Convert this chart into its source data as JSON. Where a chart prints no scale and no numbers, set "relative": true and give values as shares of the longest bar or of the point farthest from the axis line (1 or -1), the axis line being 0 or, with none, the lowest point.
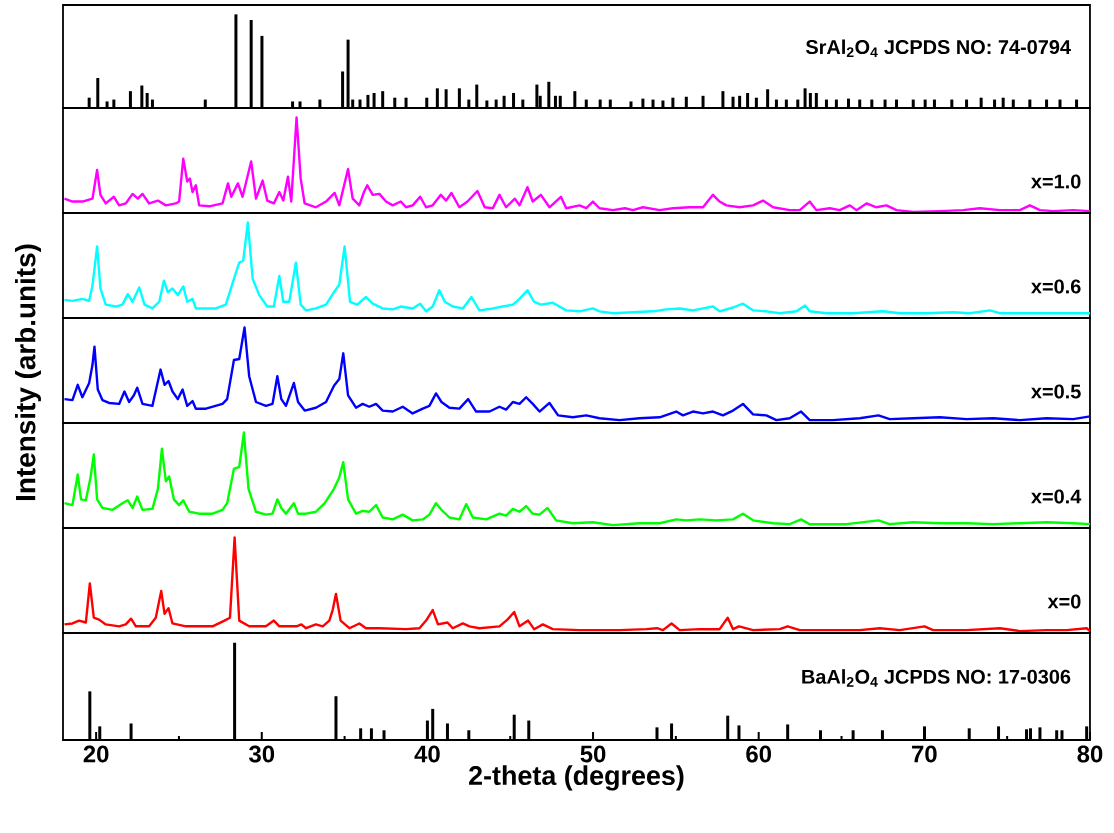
{
  "chart_data": [
    {
      "type": "bar",
      "relative": true,
      "xlim": [
        18,
        80
      ],
      "tick_labels": false,
      "color": "#000000",
      "annotations": [
        "SrAl$_{2}$O$_{4}$ JCPDS NO: 74-0794"
      ],
      "x": [
        19.58,
        20.1,
        20.66,
        21.07,
        22.07,
        22.76,
        23.08,
        23.4,
        26.59,
        28.44,
        29.36,
        30.01,
        31.86,
        32.31,
        33.51,
        34.88,
        35.21,
        35.49,
        35.93,
        36.41,
        36.78,
        37.3,
        38.03,
        38.71,
        39.96,
        40.6,
        41.13,
        41.93,
        42.5,
        42.98,
        43.59,
        44.15,
        44.63,
        45.2,
        45.76,
        46.61,
        46.81,
        47.33,
        47.73,
        48.02,
        48.9,
        49.59,
        50.43,
        51.04,
        52.29,
        53.01,
        53.62,
        54.22,
        54.82,
        55.63,
        56.64,
        57.84,
        58.45,
        58.85,
        59.33,
        59.86,
        60.54,
        61.07,
        61.67,
        62.36,
        62.8,
        63.12,
        63.48,
        64.09,
        64.69,
        65.42,
        66.1,
        66.83,
        67.63,
        68.32,
        69.33,
        70.05,
        70.61,
        71.66,
        72.55,
        73.43,
        74.24,
        74.76,
        75.37,
        76.37,
        77.38,
        78.19,
        79.19
      ],
      "values": [
        0.11,
        0.32,
        0.07,
        0.09,
        0.18,
        0.24,
        0.16,
        0.09,
        0.09,
        1.0,
        0.94,
        0.77,
        0.07,
        0.07,
        0.09,
        0.39,
        0.73,
        0.09,
        0.09,
        0.14,
        0.16,
        0.18,
        0.11,
        0.11,
        0.11,
        0.21,
        0.2,
        0.21,
        0.09,
        0.25,
        0.08,
        0.09,
        0.13,
        0.16,
        0.09,
        0.25,
        0.13,
        0.28,
        0.13,
        0.13,
        0.18,
        0.09,
        0.09,
        0.09,
        0.07,
        0.1,
        0.09,
        0.08,
        0.11,
        0.12,
        0.13,
        0.18,
        0.12,
        0.13,
        0.16,
        0.11,
        0.2,
        0.09,
        0.09,
        0.09,
        0.21,
        0.16,
        0.16,
        0.09,
        0.09,
        0.1,
        0.09,
        0.09,
        0.09,
        0.09,
        0.09,
        0.09,
        0.09,
        0.09,
        0.09,
        0.11,
        0.09,
        0.11,
        0.09,
        0.09,
        0.09,
        0.09,
        0.09
      ]
    },
    {
      "type": "line",
      "relative": true,
      "xlim": [
        18,
        80
      ],
      "tick_labels": false,
      "series": [
        {
          "name": "x=1.0",
          "color": "#ff00ff",
          "x": [
            18.09,
            18.57,
            19.17,
            19.78,
            20.06,
            20.26,
            20.58,
            21.07,
            21.39,
            21.79,
            22.2,
            22.52,
            22.8,
            23.2,
            23.73,
            24.21,
            24.81,
            25.01,
            25.26,
            25.5,
            25.66,
            25.82,
            26.02,
            26.22,
            26.83,
            27.63,
            27.96,
            28.16,
            28.56,
            28.84,
            29.36,
            29.65,
            30.05,
            30.33,
            30.73,
            31.06,
            31.3,
            31.58,
            31.78,
            32.1,
            32.35,
            32.59,
            33.27,
            33.88,
            34.4,
            34.68,
            35.21,
            35.49,
            35.89,
            36.17,
            36.37,
            36.7,
            37.1,
            37.5,
            37.91,
            38.39,
            38.71,
            39.11,
            39.56,
            39.92,
            40.32,
            40.81,
            41.13,
            41.45,
            41.93,
            42.42,
            43.02,
            43.46,
            43.95,
            44.35,
            44.75,
            45.28,
            45.56,
            46.04,
            46.36,
            46.85,
            47.37,
            48.06,
            48.38,
            49.18,
            49.59,
            49.99,
            50.39,
            51.2,
            51.92,
            52.41,
            53.01,
            54.02,
            54.82,
            55.83,
            56.64,
            57.24,
            57.64,
            58.05,
            58.85,
            59.66,
            60.26,
            60.87,
            61.87,
            62.48,
            63.08,
            63.48,
            64.29,
            64.89,
            65.5,
            65.9,
            66.51,
            67.11,
            67.71,
            68.32,
            69.33,
            70.94,
            72.35,
            73.35,
            74.56,
            75.77,
            76.37,
            76.98,
            77.78,
            78.99,
            80.0
          ],
          "values": [
            0.15,
            0.12,
            0.12,
            0.15,
            0.45,
            0.19,
            0.1,
            0.17,
            0.08,
            0.1,
            0.2,
            0.15,
            0.2,
            0.1,
            0.13,
            0.08,
            0.1,
            0.12,
            0.57,
            0.33,
            0.36,
            0.22,
            0.29,
            0.08,
            0.07,
            0.1,
            0.31,
            0.17,
            0.31,
            0.17,
            0.54,
            0.15,
            0.34,
            0.13,
            0.1,
            0.22,
            0.13,
            0.38,
            0.12,
            1.0,
            0.36,
            0.1,
            0.06,
            0.12,
            0.21,
            0.08,
            0.46,
            0.15,
            0.08,
            0.22,
            0.29,
            0.19,
            0.2,
            0.12,
            0.08,
            0.12,
            0.06,
            0.08,
            0.17,
            0.06,
            0.08,
            0.19,
            0.13,
            0.21,
            0.06,
            0.12,
            0.23,
            0.06,
            0.05,
            0.19,
            0.06,
            0.15,
            0.08,
            0.27,
            0.12,
            0.19,
            0.06,
            0.17,
            0.05,
            0.08,
            0.05,
            0.12,
            0.05,
            0.03,
            0.05,
            0.03,
            0.06,
            0.03,
            0.05,
            0.06,
            0.06,
            0.19,
            0.12,
            0.08,
            0.06,
            0.08,
            0.13,
            0.06,
            0.03,
            0.03,
            0.12,
            0.03,
            0.05,
            0.03,
            0.08,
            0.03,
            0.1,
            0.06,
            0.08,
            0.03,
            0.01,
            0.02,
            0.03,
            0.05,
            0.03,
            0.03,
            0.08,
            0.03,
            0.02,
            0.03,
            0.02
          ]
        }
      ]
    },
    {
      "type": "line",
      "relative": true,
      "xlim": [
        18,
        80
      ],
      "tick_labels": false,
      "series": [
        {
          "name": "x=0.6",
          "color": "#00ffff",
          "x": [
            18.09,
            18.57,
            19.17,
            19.58,
            19.78,
            20.06,
            20.26,
            20.58,
            21.19,
            21.59,
            21.91,
            22.2,
            22.6,
            22.92,
            23.4,
            23.81,
            24.09,
            24.33,
            24.61,
            24.93,
            25.26,
            25.5,
            25.82,
            26.02,
            26.42,
            27.23,
            27.83,
            28.32,
            28.64,
            28.88,
            29.16,
            29.45,
            29.85,
            30.33,
            30.73,
            31.06,
            31.3,
            31.66,
            32.06,
            32.35,
            32.67,
            33.27,
            33.88,
            34.36,
            34.68,
            35.0,
            35.33,
            35.77,
            36.29,
            36.7,
            37.3,
            37.91,
            38.39,
            39.11,
            39.56,
            39.92,
            40.32,
            40.72,
            41.05,
            41.53,
            42.14,
            42.66,
            43.14,
            43.95,
            44.55,
            45.16,
            45.56,
            46.04,
            46.44,
            46.85,
            47.57,
            48.38,
            49.18,
            49.99,
            50.39,
            51.2,
            52.41,
            53.62,
            54.42,
            55.23,
            56.03,
            56.64,
            57.24,
            57.64,
            58.45,
            59.05,
            59.66,
            60.46,
            61.27,
            62.28,
            62.8,
            63.08,
            64.09,
            65.7,
            67.51,
            68.52,
            70.13,
            71.74,
            72.75,
            73.96,
            74.56,
            76.17,
            78.19,
            80.0
          ],
          "values": [
            0.19,
            0.18,
            0.2,
            0.18,
            0.34,
            0.75,
            0.31,
            0.14,
            0.12,
            0.14,
            0.25,
            0.17,
            0.32,
            0.14,
            0.1,
            0.17,
            0.39,
            0.27,
            0.31,
            0.24,
            0.33,
            0.17,
            0.2,
            0.1,
            0.1,
            0.1,
            0.14,
            0.41,
            0.58,
            0.6,
            1.0,
            0.41,
            0.24,
            0.12,
            0.12,
            0.44,
            0.17,
            0.17,
            0.58,
            0.14,
            0.08,
            0.1,
            0.14,
            0.27,
            0.35,
            0.75,
            0.17,
            0.14,
            0.22,
            0.15,
            0.1,
            0.09,
            0.12,
            0.1,
            0.15,
            0.07,
            0.12,
            0.29,
            0.17,
            0.12,
            0.1,
            0.22,
            0.08,
            0.1,
            0.12,
            0.14,
            0.2,
            0.29,
            0.17,
            0.14,
            0.16,
            0.08,
            0.07,
            0.1,
            0.07,
            0.05,
            0.06,
            0.07,
            0.09,
            0.1,
            0.08,
            0.1,
            0.12,
            0.07,
            0.11,
            0.15,
            0.08,
            0.07,
            0.05,
            0.07,
            0.13,
            0.07,
            0.05,
            0.05,
            0.07,
            0.05,
            0.05,
            0.06,
            0.05,
            0.08,
            0.05,
            0.05,
            0.05,
            0.05
          ]
        }
      ]
    },
    {
      "type": "line",
      "relative": true,
      "xlim": [
        18,
        80
      ],
      "tick_labels": false,
      "ylabel": "Intensity (arb.units)",
      "series": [
        {
          "name": "x=0.5",
          "color": "#0000ff",
          "x": [
            18.09,
            18.57,
            18.89,
            19.17,
            19.58,
            19.78,
            19.9,
            20.1,
            20.38,
            20.78,
            21.39,
            21.71,
            21.99,
            22.28,
            22.48,
            22.8,
            23.4,
            23.89,
            24.13,
            24.37,
            24.61,
            24.93,
            25.22,
            25.5,
            25.82,
            26.02,
            26.63,
            27.63,
            27.91,
            28.32,
            28.64,
            28.96,
            29.24,
            29.65,
            30.25,
            30.65,
            30.94,
            31.18,
            31.46,
            31.94,
            32.19,
            32.59,
            33.27,
            33.88,
            34.36,
            34.68,
            34.92,
            35.21,
            35.69,
            36.09,
            36.49,
            36.9,
            37.3,
            37.91,
            38.51,
            39.11,
            39.72,
            40.12,
            40.52,
            40.85,
            41.33,
            41.93,
            42.46,
            42.94,
            43.75,
            44.35,
            44.75,
            45.16,
            45.56,
            45.96,
            46.36,
            46.77,
            47.37,
            47.89,
            48.78,
            49.59,
            50.39,
            51.6,
            52.81,
            54.02,
            55.02,
            55.43,
            56.03,
            56.64,
            57.24,
            57.84,
            58.45,
            59.05,
            59.66,
            60.46,
            61.07,
            61.87,
            62.56,
            63.08,
            64.49,
            66.1,
            67.23,
            67.91,
            69.33,
            70.94,
            72.55,
            74.16,
            75.77,
            77.38,
            78.99,
            80.0
          ],
          "values": [
            0.25,
            0.24,
            0.4,
            0.27,
            0.42,
            0.61,
            0.8,
            0.35,
            0.24,
            0.21,
            0.2,
            0.33,
            0.22,
            0.29,
            0.37,
            0.2,
            0.18,
            0.56,
            0.4,
            0.44,
            0.33,
            0.25,
            0.35,
            0.18,
            0.23,
            0.15,
            0.15,
            0.2,
            0.25,
            0.66,
            0.67,
            1.0,
            0.49,
            0.22,
            0.18,
            0.2,
            0.49,
            0.25,
            0.18,
            0.42,
            0.22,
            0.13,
            0.16,
            0.22,
            0.39,
            0.46,
            0.73,
            0.29,
            0.16,
            0.2,
            0.17,
            0.2,
            0.13,
            0.12,
            0.17,
            0.1,
            0.15,
            0.18,
            0.31,
            0.22,
            0.16,
            0.15,
            0.25,
            0.12,
            0.12,
            0.17,
            0.14,
            0.22,
            0.2,
            0.27,
            0.2,
            0.12,
            0.21,
            0.08,
            0.06,
            0.08,
            0.05,
            0.03,
            0.05,
            0.06,
            0.12,
            0.08,
            0.12,
            0.1,
            0.12,
            0.08,
            0.13,
            0.2,
            0.09,
            0.08,
            0.03,
            0.05,
            0.12,
            0.03,
            0.03,
            0.05,
            0.08,
            0.04,
            0.05,
            0.06,
            0.04,
            0.05,
            0.03,
            0.05,
            0.04,
            0.07
          ]
        }
      ]
    },
    {
      "type": "line",
      "relative": true,
      "xlim": [
        18,
        80
      ],
      "tick_labels": false,
      "series": [
        {
          "name": "x=0.4",
          "color": "#00ff00",
          "x": [
            18.09,
            18.57,
            18.89,
            19.09,
            19.38,
            19.66,
            19.86,
            20.06,
            20.38,
            20.99,
            21.59,
            21.91,
            22.2,
            22.48,
            22.8,
            23.4,
            23.73,
            23.97,
            24.21,
            24.41,
            24.69,
            25.01,
            25.26,
            25.62,
            26.22,
            27.03,
            27.63,
            27.91,
            28.32,
            28.64,
            28.92,
            29.2,
            29.65,
            30.25,
            30.65,
            30.94,
            31.18,
            31.46,
            31.94,
            32.19,
            32.67,
            33.27,
            33.8,
            34.36,
            34.68,
            34.92,
            35.21,
            35.69,
            36.09,
            36.49,
            36.9,
            37.3,
            37.91,
            38.51,
            39.11,
            39.72,
            40.12,
            40.52,
            40.85,
            41.33,
            41.93,
            42.34,
            42.74,
            43.55,
            44.35,
            44.75,
            45.16,
            45.56,
            45.96,
            46.36,
            46.77,
            47.25,
            47.77,
            48.78,
            49.99,
            51.2,
            52.81,
            54.02,
            55.02,
            55.63,
            56.43,
            57.44,
            58.45,
            59.05,
            59.66,
            60.87,
            61.87,
            62.56,
            63.08,
            65.3,
            67.23,
            67.91,
            69.33,
            70.94,
            72.55,
            74.16,
            75.77,
            77.38,
            78.99,
            80.0
          ],
          "values": [
            0.26,
            0.24,
            0.56,
            0.3,
            0.29,
            0.53,
            0.77,
            0.3,
            0.21,
            0.19,
            0.26,
            0.29,
            0.21,
            0.33,
            0.19,
            0.2,
            0.41,
            0.83,
            0.49,
            0.54,
            0.3,
            0.24,
            0.29,
            0.17,
            0.15,
            0.15,
            0.19,
            0.26,
            0.62,
            0.64,
            1.0,
            0.41,
            0.17,
            0.14,
            0.15,
            0.3,
            0.21,
            0.15,
            0.26,
            0.15,
            0.15,
            0.17,
            0.26,
            0.41,
            0.53,
            0.69,
            0.3,
            0.15,
            0.18,
            0.17,
            0.24,
            0.11,
            0.09,
            0.14,
            0.08,
            0.09,
            0.14,
            0.26,
            0.19,
            0.11,
            0.09,
            0.25,
            0.11,
            0.09,
            0.15,
            0.13,
            0.2,
            0.17,
            0.23,
            0.15,
            0.14,
            0.21,
            0.08,
            0.05,
            0.06,
            0.03,
            0.05,
            0.05,
            0.09,
            0.08,
            0.09,
            0.08,
            0.09,
            0.15,
            0.08,
            0.05,
            0.04,
            0.09,
            0.04,
            0.04,
            0.08,
            0.04,
            0.06,
            0.05,
            0.05,
            0.04,
            0.05,
            0.06,
            0.05,
            0.04
          ]
        }
      ]
    },
    {
      "type": "line",
      "relative": true,
      "xlim": [
        18,
        80
      ],
      "tick_labels": false,
      "series": [
        {
          "name": "x=0",
          "color": "#ff0000",
          "x": [
            18.09,
            18.57,
            18.97,
            19.38,
            19.62,
            19.86,
            20.18,
            20.58,
            21.39,
            21.79,
            22.11,
            22.4,
            23.2,
            23.6,
            23.93,
            24.13,
            24.37,
            24.61,
            25.42,
            27.03,
            27.75,
            28.08,
            28.36,
            28.64,
            29.24,
            30.25,
            30.73,
            31.06,
            32.1,
            32.39,
            32.67,
            33.27,
            33.68,
            34.08,
            34.28,
            34.48,
            34.76,
            35.29,
            35.89,
            36.29,
            37.1,
            38.71,
            39.52,
            39.92,
            40.32,
            40.64,
            41.21,
            41.53,
            42.14,
            42.54,
            43.14,
            44.35,
            44.83,
            45.24,
            45.56,
            46.08,
            46.44,
            46.97,
            47.57,
            49.18,
            51.6,
            53.21,
            53.86,
            54.22,
            54.74,
            55.23,
            56.43,
            57.64,
            58.13,
            58.45,
            58.81,
            59.66,
            61.27,
            61.75,
            62.48,
            64.49,
            66.1,
            67.31,
            68.52,
            70.01,
            70.53,
            72.55,
            74.56,
            75.77,
            77.38,
            78.59,
            79.8,
            80.0
          ],
          "values": [
            0.09,
            0.1,
            0.13,
            0.11,
            0.52,
            0.16,
            0.14,
            0.09,
            0.07,
            0.09,
            0.15,
            0.07,
            0.07,
            0.16,
            0.44,
            0.2,
            0.26,
            0.1,
            0.07,
            0.07,
            0.13,
            0.16,
            1.0,
            0.13,
            0.07,
            0.07,
            0.13,
            0.07,
            0.07,
            0.09,
            0.05,
            0.09,
            0.07,
            0.13,
            0.24,
            0.41,
            0.13,
            0.05,
            0.1,
            0.05,
            0.05,
            0.04,
            0.05,
            0.13,
            0.24,
            0.09,
            0.11,
            0.05,
            0.1,
            0.07,
            0.05,
            0.07,
            0.14,
            0.22,
            0.07,
            0.13,
            0.04,
            0.09,
            0.04,
            0.03,
            0.03,
            0.04,
            0.05,
            0.03,
            0.1,
            0.03,
            0.04,
            0.04,
            0.16,
            0.04,
            0.07,
            0.03,
            0.04,
            0.07,
            0.03,
            0.03,
            0.03,
            0.05,
            0.03,
            0.07,
            0.03,
            0.03,
            0.05,
            0.02,
            0.03,
            0.03,
            0.05,
            0.02
          ]
        }
      ]
    },
    {
      "type": "bar",
      "relative": true,
      "xlim": [
        18,
        80
      ],
      "tick_labels": "x",
      "color": "#000000",
      "xlabel": "2-theta (degrees)",
      "annotations": [
        "BaAl$_{2}$O$_{4}$ JCPDS NO: 17-0306"
      ],
      "xticks": [
        20,
        {
          "value": 25,
          "label": null
        },
        30,
        {
          "value": 35,
          "label": null
        },
        40,
        {
          "value": 45,
          "label": null
        },
        50,
        {
          "value": 55,
          "label": null
        },
        60,
        {
          "value": 65,
          "label": null
        },
        70,
        {
          "value": 75,
          "label": null
        },
        80
      ],
      "x": [
        19.62,
        20.22,
        22.11,
        28.36,
        34.48,
        35.97,
        36.62,
        37.38,
        40.0,
        40.32,
        41.21,
        42.5,
        45.24,
        46.12,
        53.86,
        54.74,
        58.13,
        58.81,
        61.75,
        63.73,
        65.7,
        67.47,
        70.01,
        72.71,
        74.48,
        76.17,
        76.41,
        76.98,
        77.99,
        78.31,
        79.8
      ],
      "values": [
        0.5,
        0.14,
        0.17,
        1.0,
        0.45,
        0.12,
        0.12,
        0.1,
        0.2,
        0.32,
        0.17,
        0.1,
        0.26,
        0.2,
        0.13,
        0.17,
        0.25,
        0.15,
        0.16,
        0.1,
        0.1,
        0.1,
        0.14,
        0.12,
        0.14,
        0.11,
        0.12,
        0.13,
        0.1,
        0.1,
        0.14
      ]
    }
  ]
}
